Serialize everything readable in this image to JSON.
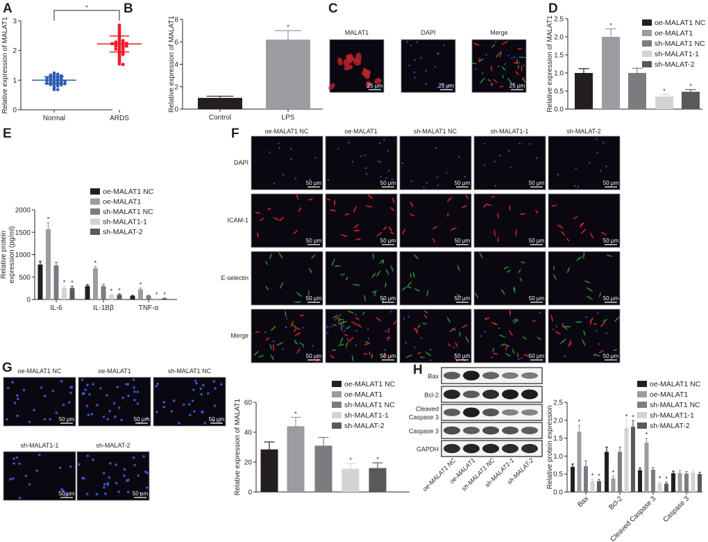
{
  "panels": {
    "A": "A",
    "B": "B",
    "C": "C",
    "D": "D",
    "E": "E",
    "F": "F",
    "G": "G",
    "H": "H"
  },
  "panel_c": {
    "columns": [
      "MALAT1",
      "DAPI",
      "Merge"
    ],
    "scale_bar": "25 μm"
  },
  "panel_f": {
    "columns": [
      "oe-MALAT1 NC",
      "oe-MALAT1",
      "sh-MALAT1 NC",
      "sh-MALAT1-1",
      "sh-MALAT-2"
    ],
    "rows": [
      "DAPI",
      "ICAM-1",
      "E-selectin",
      "Merge"
    ],
    "scale_bar": "50 μm"
  },
  "panel_g": {
    "images": [
      "oe-MALAT1 NC",
      "oe-MALAT1",
      "sh-MALAT1 NC",
      "sh-MALAT1-1",
      "sh-MALAT-2"
    ],
    "scale_bar": "50 μm"
  },
  "panel_h_blot": {
    "bands": [
      "Bax",
      "Bcl-2",
      "Cleaved\nCaspase 3",
      "Caspase 3",
      "GAPDH"
    ],
    "lanes": [
      "oe-MALAT1 NC",
      "oe-MALAT1",
      "sh-MALAT1 NC",
      "sh-MALAT1-1",
      "sh-MALAT-2"
    ]
  },
  "colors": {
    "normal": "#2a5db0",
    "ards": "#ee1c25",
    "series": [
      "#231f20",
      "#9a9ca1",
      "#7b7c80",
      "#d3d3d5",
      "#58595b"
    ]
  },
  "chart_data": [
    {
      "panel": "A",
      "type": "scatter",
      "categories": [
        "Normal",
        "ARDS"
      ],
      "ylabel": "Relative expression of MALAT1",
      "ylim": [
        0,
        3
      ],
      "yticks": [
        0,
        1,
        2,
        3
      ],
      "series": [
        {
          "category": "Normal",
          "values": [
            1.24,
            1.21,
            1.2,
            1.19,
            1.18,
            1.17,
            1.15,
            1.13,
            1.12,
            1.11,
            1.1,
            1.09,
            1.08,
            1.07,
            1.06,
            1.05,
            1.04,
            1.03,
            1.02,
            1.01,
            1.0,
            1.0,
            0.99,
            0.98,
            0.97,
            0.96,
            0.95,
            0.94,
            0.93,
            0.92,
            0.91,
            0.9,
            0.9,
            0.89,
            0.88,
            0.87,
            0.86,
            0.85,
            0.84,
            0.82,
            0.8,
            0.76,
            0.73,
            0.68,
            0.68
          ],
          "mean": 1.0,
          "sd": 0.12
        },
        {
          "category": "ARDS",
          "values": [
            2.85,
            2.78,
            2.72,
            2.65,
            2.6,
            2.55,
            2.5,
            2.45,
            2.4,
            2.36,
            2.33,
            2.3,
            2.29,
            2.28,
            2.27,
            2.26,
            2.25,
            2.24,
            2.23,
            2.22,
            2.21,
            2.2,
            2.19,
            2.18,
            2.17,
            2.16,
            2.15,
            2.13,
            2.11,
            2.09,
            2.07,
            2.05,
            2.02,
            2.0,
            1.97,
            1.94,
            1.9,
            1.87,
            1.83,
            1.78,
            1.75,
            1.7,
            1.63,
            1.55,
            1.53
          ],
          "mean": 2.22,
          "sd": 0.27
        }
      ],
      "significance": {
        "between": [
          "Normal",
          "ARDS"
        ],
        "label": "*"
      },
      "grid": false
    },
    {
      "panel": "B",
      "type": "bar",
      "categories": [
        "Control",
        "LPS"
      ],
      "values": [
        1.0,
        6.2
      ],
      "errors": [
        0.15,
        0.8
      ],
      "stars": [
        "",
        "*"
      ],
      "ylabel": "Relative expression of MALAT1",
      "ylim": [
        0,
        8
      ],
      "yticks": [
        0,
        2,
        4,
        6,
        8
      ],
      "grid": false
    },
    {
      "panel": "D",
      "type": "bar",
      "categories": [
        "oe-MALAT1 NC",
        "oe-MALAT1",
        "sh-MALAT1 NC",
        "sh-MALAT1-1",
        "sh-MALAT-2"
      ],
      "values": [
        1.0,
        2.0,
        1.0,
        0.35,
        0.48
      ],
      "errors": [
        0.12,
        0.22,
        0.13,
        0.05,
        0.06
      ],
      "stars": [
        "",
        "*",
        "",
        "*",
        "*"
      ],
      "ylabel": "Relative expression of MALAT1",
      "ylim": [
        0,
        2.5
      ],
      "yticks": [
        "0.0",
        "0.5",
        "1.0",
        "1.5",
        "2.0",
        "2.5"
      ],
      "legend": [
        "oe-MALAT1 NC",
        "oe-MALAT1",
        "sh-MALAT1 NC",
        "sh-MALAT1-1",
        "sh-MALAT-2"
      ],
      "legend_position": "top-right",
      "grid": false
    },
    {
      "panel": "E",
      "type": "bar",
      "categories": [
        "IL-6",
        "IL-1Bβ",
        "TNF-α"
      ],
      "series": [
        {
          "name": "oe-MALAT1 NC",
          "values": [
            780,
            300,
            80
          ],
          "errors": [
            70,
            30,
            10
          ],
          "stars": [
            "",
            "",
            ""
          ]
        },
        {
          "name": "oe-MALAT1",
          "values": [
            1570,
            700,
            225
          ],
          "errors": [
            140,
            40,
            30
          ],
          "stars": [
            "*",
            "*",
            "*"
          ]
        },
        {
          "name": "sh-MALAT1 NC",
          "values": [
            760,
            300,
            85
          ],
          "errors": [
            70,
            40,
            10
          ],
          "stars": [
            "",
            "",
            ""
          ]
        },
        {
          "name": "sh-MALAT1-1",
          "values": [
            260,
            100,
            25
          ],
          "errors": [
            40,
            10,
            5
          ],
          "stars": [
            "*",
            "*",
            "*"
          ]
        },
        {
          "name": "sh-MALAT-2",
          "values": [
            255,
            105,
            25
          ],
          "errors": [
            40,
            20,
            5
          ],
          "stars": [
            "*",
            "*",
            "*"
          ]
        }
      ],
      "ylabel": "Relative protein\nexpression (pg/ml)",
      "ylim": [
        0,
        2000
      ],
      "yticks": [
        0,
        500,
        1000,
        1500,
        2000
      ],
      "legend_position": "top-right",
      "grid": false
    },
    {
      "panel": "G",
      "type": "bar",
      "categories": [
        "oe-MALAT1 NC",
        "oe-MALAT1",
        "sh-MALAT1 NC",
        "sh-MALAT1-1",
        "sh-MALAT-2"
      ],
      "values": [
        28.5,
        44,
        31,
        15.5,
        16
      ],
      "errors": [
        5,
        6,
        5.5,
        3.5,
        3.5
      ],
      "stars": [
        "",
        "*",
        "",
        "*",
        "*"
      ],
      "ylabel": "Relative expression of MALAT1",
      "ylim": [
        0,
        60
      ],
      "yticks": [
        0,
        20,
        40,
        60
      ],
      "legend": [
        "oe-MALAT1 NC",
        "oe-MALAT1",
        "sh-MALAT1 NC",
        "sh-MALAT1-1",
        "sh-MALAT-2"
      ],
      "legend_position": "top-right",
      "grid": false
    },
    {
      "panel": "H",
      "type": "bar",
      "categories": [
        "Bax",
        "Bcl-2",
        "Cleaved Caspase 3",
        "Caspase 3"
      ],
      "series": [
        {
          "name": "oe-MALAT1 NC",
          "values": [
            0.7,
            1.12,
            0.61,
            0.52
          ],
          "errors": [
            0.08,
            0.13,
            0.06,
            0.06
          ],
          "stars": [
            "",
            "",
            "",
            ""
          ]
        },
        {
          "name": "oe-MALAT1",
          "values": [
            1.68,
            0.38,
            1.38,
            0.53
          ],
          "errors": [
            0.18,
            0.07,
            0.12,
            0.07
          ],
          "stars": [
            "*",
            "*",
            "*",
            ""
          ]
        },
        {
          "name": "sh-MALAT1 NC",
          "values": [
            0.72,
            1.12,
            0.62,
            0.51
          ],
          "errors": [
            0.15,
            0.13,
            0.06,
            0.06
          ],
          "stars": [
            "",
            "",
            "",
            ""
          ]
        },
        {
          "name": "sh-MALAT1-1",
          "values": [
            0.3,
            1.78,
            0.24,
            0.54
          ],
          "errors": [
            0.06,
            0.23,
            0.04,
            0.05
          ],
          "stars": [
            "*",
            "*",
            "*",
            ""
          ]
        },
        {
          "name": "sh-MALAT-2",
          "values": [
            0.3,
            1.82,
            0.23,
            0.5
          ],
          "errors": [
            0.05,
            0.17,
            0.04,
            0.05
          ],
          "stars": [
            "*",
            "*",
            "*",
            ""
          ]
        }
      ],
      "ylabel": "Relative protein expression",
      "ylim": [
        0,
        2.5
      ],
      "yticks": [
        "0.0",
        "0.5",
        "1.0",
        "1.5",
        "2.0",
        "2.5"
      ],
      "legend_position": "top-right",
      "grid": false
    }
  ]
}
